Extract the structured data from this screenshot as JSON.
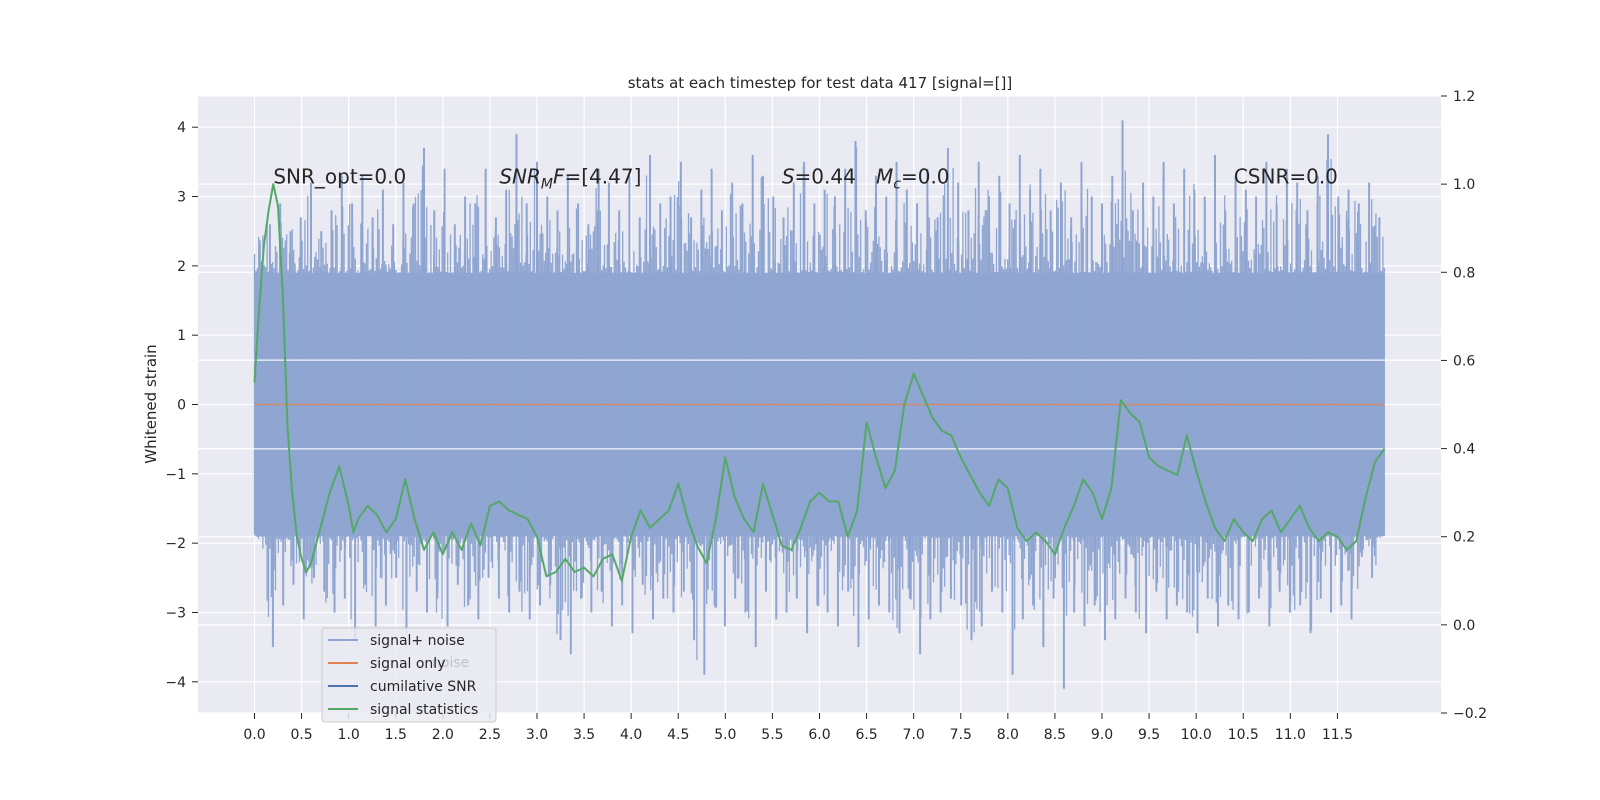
{
  "chart_data": {
    "type": "line",
    "title": "stats at each timestep for test data 417 [signal=[]]",
    "xlabel": "",
    "ylabel": "Whitened strain",
    "ylabel_right": "",
    "xlim": [
      -0.6,
      12.6
    ],
    "ylim": [
      -4.45,
      4.45
    ],
    "ylim_right": [
      -0.2,
      1.2
    ],
    "x_ticks": [
      "0.0",
      "0.5",
      "1.0",
      "1.5",
      "2.0",
      "2.5",
      "3.0",
      "3.5",
      "4.0",
      "4.5",
      "5.0",
      "5.5",
      "6.0",
      "6.5",
      "7.0",
      "7.5",
      "8.0",
      "8.5",
      "9.0",
      "9.5",
      "10.0",
      "10.5",
      "11.0",
      "11.5"
    ],
    "x_tick_values": [
      0,
      0.5,
      1,
      1.5,
      2,
      2.5,
      3,
      3.5,
      4,
      4.5,
      5,
      5.5,
      6,
      6.5,
      7,
      7.5,
      8,
      8.5,
      9,
      9.5,
      10,
      10.5,
      11,
      11.5
    ],
    "y_ticks_left": [
      "−4",
      "−3",
      "−2",
      "−1",
      "0",
      "1",
      "2",
      "3",
      "4"
    ],
    "y_tick_values_left": [
      -4,
      -3,
      -2,
      -1,
      0,
      1,
      2,
      3,
      4
    ],
    "y_ticks_right": [
      "−0.2",
      "0.0",
      "0.2",
      "0.4",
      "0.6",
      "0.8",
      "1.0",
      "1.2"
    ],
    "y_tick_values_right": [
      -0.2,
      0,
      0.2,
      0.4,
      0.6,
      0.8,
      1.0,
      1.2
    ],
    "grid": true,
    "annotations": [
      {
        "id": "snr-opt",
        "text": "SNR_opt=0.0",
        "x": 0.2,
        "y": 3.3
      },
      {
        "id": "snr-mf",
        "text": "SNR_MF=[4.47]",
        "x": 2.6,
        "y": 3.3
      },
      {
        "id": "s-value",
        "text": "S=0.44",
        "x": 5.6,
        "y": 3.3
      },
      {
        "id": "mc-value",
        "text": "Mc=0.0",
        "x": 6.6,
        "y": 3.3
      },
      {
        "id": "csnr",
        "text": "CSNR=0.0",
        "x": 10.4,
        "y": 3.3
      }
    ],
    "legend": {
      "position": "lower-left",
      "entries": [
        {
          "label": "signal+ noise",
          "color": "#8fa5d1"
        },
        {
          "label": "signal only",
          "color": "#dd8452"
        },
        {
          "label": "cumilative SNR",
          "color": "#4c72b0"
        },
        {
          "label": "signal statistics",
          "color": "#55a868"
        }
      ],
      "ghost_text": "noise"
    },
    "series": [
      {
        "name": "signal+ noise",
        "axis": "left",
        "color": "#8fa5d1",
        "x_range": [
          0,
          12.0
        ],
        "band_upper": [
          2.3,
          2.6,
          2.9,
          2.5,
          2.7,
          3.2,
          2.5,
          2.8,
          3.3,
          2.9,
          3.3,
          2.7,
          3.1,
          2.6,
          3.2,
          2.9,
          3.7,
          2.8,
          3.4,
          2.6,
          3.0,
          2.9,
          3.4,
          2.7,
          3.1,
          3.9,
          2.9,
          3.5,
          3.0,
          2.8,
          3.3,
          2.9,
          2.6,
          3.4,
          3.2,
          2.8,
          3.3,
          2.7,
          3.6,
          2.9,
          3.0,
          3.5,
          2.7,
          3.1,
          3.4,
          2.8,
          3.2,
          2.9,
          3.6,
          3.3,
          3.0,
          2.7,
          3.2,
          3.5,
          2.9,
          3.1,
          3.0,
          3.4,
          3.8,
          2.8,
          3.3,
          3.0,
          3.5,
          3.1,
          2.9,
          3.4,
          2.7,
          3.7,
          3.2,
          2.8,
          3.5,
          3.0,
          3.3,
          2.9,
          3.6,
          3.1,
          3.4,
          2.8,
          3.2,
          2.7,
          3.5,
          3.0,
          2.9,
          3.3,
          4.1,
          2.8,
          3.2,
          3.0,
          3.5,
          2.9,
          3.4,
          3.1,
          3.0,
          3.6,
          2.8,
          3.3,
          3.1,
          3.0,
          3.5,
          2.9,
          3.4,
          3.2,
          2.8,
          3.3,
          3.9,
          3.0,
          3.1,
          2.9,
          3.2,
          2.7
        ],
        "band_lower": [
          -1.4,
          -3.5,
          -2.9,
          -2.6,
          -3.1,
          -2.5,
          -2.7,
          -3.0,
          -2.8,
          -3.4,
          -2.6,
          -3.2,
          -2.9,
          -2.5,
          -3.3,
          -2.7,
          -3.0,
          -2.8,
          -3.2,
          -2.6,
          -2.9,
          -3.1,
          -2.5,
          -2.8,
          -3.0,
          -2.7,
          -3.1,
          -2.9,
          -2.6,
          -3.4,
          -3.6,
          -2.8,
          -3.0,
          -2.7,
          -3.2,
          -2.9,
          -3.3,
          -2.6,
          -3.1,
          -2.8,
          -3.0,
          -2.7,
          -3.4,
          -3.9,
          -2.9,
          -3.2,
          -2.8,
          -3.0,
          -3.5,
          -2.7,
          -3.1,
          -3.0,
          -2.8,
          -3.3,
          -2.9,
          -3.0,
          -3.2,
          -2.7,
          -3.5,
          -3.1,
          -2.9,
          -3.0,
          -3.3,
          -2.8,
          -3.6,
          -3.1,
          -3.0,
          -2.8,
          -2.9,
          -3.4,
          -3.2,
          -2.7,
          -3.0,
          -3.9,
          -3.1,
          -2.9,
          -3.5,
          -2.8,
          -4.1,
          -3.0,
          -3.2,
          -2.9,
          -3.4,
          -3.1,
          -2.8,
          -3.0,
          -3.3,
          -2.7,
          -3.1,
          -2.9,
          -3.0,
          -3.3,
          -2.8,
          -3.2,
          -2.9,
          -3.1,
          -3.0,
          -2.8,
          -3.2,
          -2.7,
          -3.0,
          -2.9,
          -3.3,
          -2.8,
          -3.0,
          -2.9,
          -3.1,
          -2.2,
          -2.5,
          -1.6
        ],
        "core_upper": 1.9,
        "core_lower": -1.9
      },
      {
        "name": "signal only",
        "axis": "left",
        "color": "#dd8452",
        "x": [
          0,
          12.0
        ],
        "y": [
          0,
          0
        ]
      },
      {
        "name": "signal statistics",
        "axis": "right",
        "color": "#55a868",
        "x": [
          0.0,
          0.05,
          0.1,
          0.15,
          0.2,
          0.25,
          0.3,
          0.35,
          0.4,
          0.45,
          0.5,
          0.55,
          0.6,
          0.65,
          0.7,
          0.8,
          0.9,
          1.0,
          1.05,
          1.1,
          1.2,
          1.3,
          1.4,
          1.5,
          1.6,
          1.7,
          1.8,
          1.9,
          2.0,
          2.1,
          2.2,
          2.3,
          2.4,
          2.5,
          2.6,
          2.7,
          2.8,
          2.9,
          3.0,
          3.1,
          3.2,
          3.3,
          3.4,
          3.5,
          3.6,
          3.7,
          3.8,
          3.9,
          4.0,
          4.1,
          4.2,
          4.3,
          4.4,
          4.5,
          4.6,
          4.7,
          4.8,
          4.9,
          5.0,
          5.1,
          5.2,
          5.3,
          5.4,
          5.5,
          5.6,
          5.7,
          5.8,
          5.9,
          6.0,
          6.1,
          6.2,
          6.3,
          6.4,
          6.5,
          6.6,
          6.7,
          6.8,
          6.9,
          7.0,
          7.1,
          7.2,
          7.3,
          7.4,
          7.5,
          7.6,
          7.7,
          7.8,
          7.9,
          8.0,
          8.1,
          8.2,
          8.3,
          8.4,
          8.5,
          8.6,
          8.7,
          8.8,
          8.9,
          9.0,
          9.1,
          9.2,
          9.3,
          9.4,
          9.5,
          9.6,
          9.7,
          9.8,
          9.9,
          10.0,
          10.1,
          10.2,
          10.3,
          10.4,
          10.5,
          10.6,
          10.7,
          10.8,
          10.9,
          11.0,
          11.1,
          11.2,
          11.3,
          11.4,
          11.5,
          11.6,
          11.7,
          11.8,
          11.9,
          12.0
        ],
        "y": [
          0.55,
          0.72,
          0.86,
          0.94,
          1.0,
          0.95,
          0.75,
          0.45,
          0.3,
          0.2,
          0.15,
          0.12,
          0.14,
          0.18,
          0.22,
          0.3,
          0.36,
          0.27,
          0.21,
          0.24,
          0.27,
          0.25,
          0.21,
          0.24,
          0.33,
          0.24,
          0.17,
          0.21,
          0.16,
          0.21,
          0.17,
          0.23,
          0.18,
          0.27,
          0.28,
          0.26,
          0.25,
          0.24,
          0.2,
          0.11,
          0.12,
          0.15,
          0.12,
          0.13,
          0.11,
          0.15,
          0.16,
          0.1,
          0.2,
          0.26,
          0.22,
          0.24,
          0.26,
          0.32,
          0.24,
          0.18,
          0.14,
          0.24,
          0.38,
          0.29,
          0.24,
          0.21,
          0.32,
          0.25,
          0.18,
          0.17,
          0.22,
          0.28,
          0.3,
          0.28,
          0.28,
          0.2,
          0.26,
          0.46,
          0.38,
          0.31,
          0.35,
          0.5,
          0.57,
          0.52,
          0.47,
          0.44,
          0.43,
          0.38,
          0.34,
          0.3,
          0.27,
          0.33,
          0.31,
          0.22,
          0.19,
          0.21,
          0.19,
          0.16,
          0.22,
          0.27,
          0.33,
          0.3,
          0.24,
          0.31,
          0.51,
          0.48,
          0.46,
          0.38,
          0.36,
          0.35,
          0.34,
          0.43,
          0.35,
          0.28,
          0.22,
          0.19,
          0.24,
          0.21,
          0.19,
          0.24,
          0.26,
          0.21,
          0.24,
          0.27,
          0.22,
          0.19,
          0.21,
          0.2,
          0.17,
          0.19,
          0.29,
          0.37,
          0.4
        ]
      }
    ]
  }
}
